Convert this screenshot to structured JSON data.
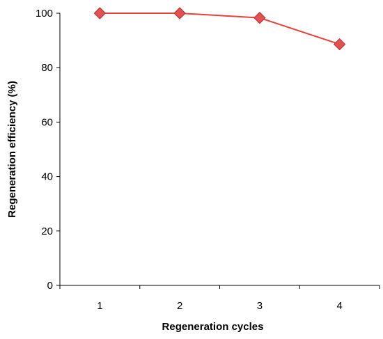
{
  "chart_data": {
    "type": "line",
    "title": "",
    "xlabel": "Regeneration cycles",
    "ylabel": "Regeneration efficiency (%)",
    "x": [
      1,
      2,
      3,
      4
    ],
    "xlim": [
      0.5,
      4.5
    ],
    "ylim": [
      0,
      100
    ],
    "yticks": [
      0,
      20,
      40,
      60,
      80,
      100
    ],
    "xticks": [
      1,
      2,
      3,
      4
    ],
    "grid": false,
    "series": [
      {
        "values": [
          100,
          100,
          98.3,
          88.6
        ],
        "marker": "diamond",
        "line_color": "#e8403a",
        "marker_fill": "#e05353",
        "marker_edge": "#b52a2a"
      }
    ]
  }
}
